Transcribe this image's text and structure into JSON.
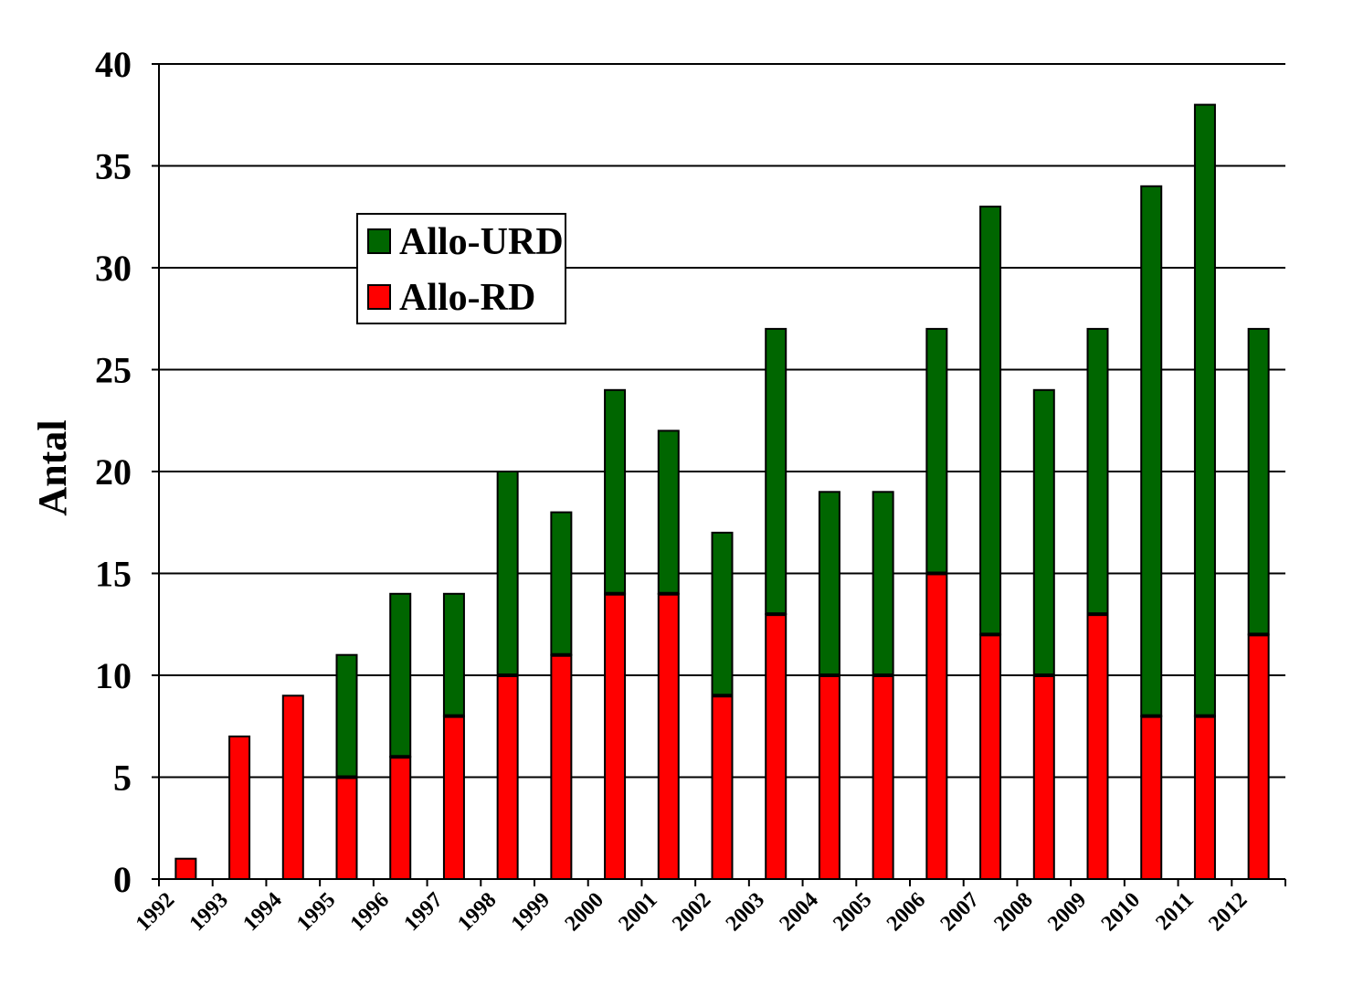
{
  "chart_data": {
    "type": "bar",
    "stacked": true,
    "title": "",
    "xlabel": "",
    "ylabel": "Antal",
    "ylim": [
      0,
      40
    ],
    "yticks": [
      0,
      5,
      10,
      15,
      20,
      25,
      30,
      35,
      40
    ],
    "grid": "horizontal",
    "legend_position": "upper-left",
    "categories": [
      "1992",
      "1993",
      "1994",
      "1995",
      "1996",
      "1997",
      "1998",
      "1999",
      "2000",
      "2001",
      "2002",
      "2003",
      "2004",
      "2005",
      "2006",
      "2007",
      "2008",
      "2009",
      "2010",
      "2011",
      "2012"
    ],
    "series": [
      {
        "name": "Allo-RD",
        "color": "#ff0000",
        "values": [
          1,
          7,
          9,
          5,
          6,
          8,
          10,
          11,
          14,
          14,
          9,
          13,
          10,
          10,
          15,
          12,
          10,
          13,
          8,
          8,
          12
        ]
      },
      {
        "name": "Allo-URD",
        "color": "#006600",
        "values": [
          0,
          0,
          0,
          6,
          8,
          6,
          10,
          7,
          10,
          8,
          8,
          14,
          9,
          9,
          12,
          21,
          14,
          14,
          26,
          30,
          15
        ]
      }
    ],
    "legend": {
      "items": [
        {
          "name": "Allo-URD",
          "color": "#006600"
        },
        {
          "name": "Allo-RD",
          "color": "#ff0000"
        }
      ]
    }
  }
}
